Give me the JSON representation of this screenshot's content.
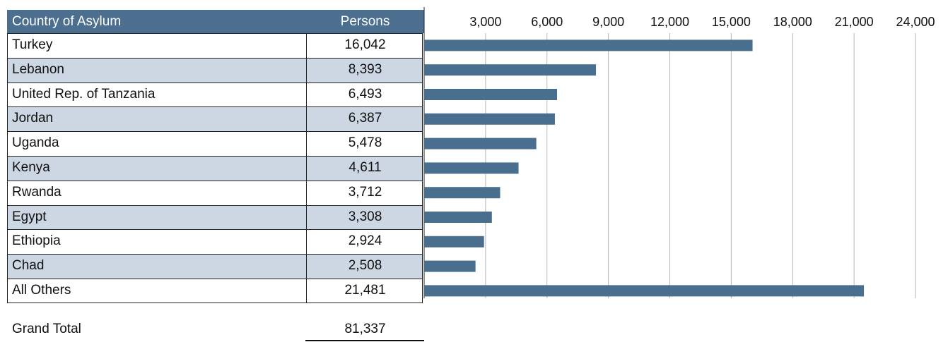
{
  "table": {
    "header": {
      "country": "Country of Asylum",
      "persons": "Persons"
    },
    "rows": [
      {
        "country": "Turkey",
        "persons": "16,042"
      },
      {
        "country": "Lebanon",
        "persons": "8,393"
      },
      {
        "country": "United Rep. of Tanzania",
        "persons": "6,493"
      },
      {
        "country": "Jordan",
        "persons": "6,387"
      },
      {
        "country": "Uganda",
        "persons": "5,478"
      },
      {
        "country": "Kenya",
        "persons": "4,611"
      },
      {
        "country": "Rwanda",
        "persons": "3,712"
      },
      {
        "country": "Egypt",
        "persons": "3,308"
      },
      {
        "country": "Ethiopia",
        "persons": "2,924"
      },
      {
        "country": "Chad",
        "persons": "2,508"
      },
      {
        "country": "All Others",
        "persons": "21,481"
      }
    ],
    "grand_total": {
      "label": "Grand Total",
      "value": "81,337"
    }
  },
  "chart_data": {
    "type": "bar",
    "orientation": "horizontal",
    "categories": [
      "Turkey",
      "Lebanon",
      "United Rep. of Tanzania",
      "Jordan",
      "Uganda",
      "Kenya",
      "Rwanda",
      "Egypt",
      "Ethiopia",
      "Chad",
      "All Others"
    ],
    "values": [
      16042,
      8393,
      6493,
      6387,
      5478,
      4611,
      3712,
      3308,
      2924,
      2508,
      21481
    ],
    "xlim": [
      0,
      24000
    ],
    "xticks": [
      3000,
      6000,
      9000,
      12000,
      15000,
      18000,
      21000,
      24000
    ],
    "xtick_labels": [
      "3,000",
      "6,000",
      "9,000",
      "12,000",
      "15,000",
      "18,000",
      "21,000",
      "24,000"
    ],
    "axis_position": "top",
    "grid": true,
    "bar_color": "#4a6f8e",
    "grid_color": "#b5b5b5"
  },
  "colors": {
    "header_bg": "#4c6f8f",
    "alt_row_bg": "#cdd7e3"
  }
}
